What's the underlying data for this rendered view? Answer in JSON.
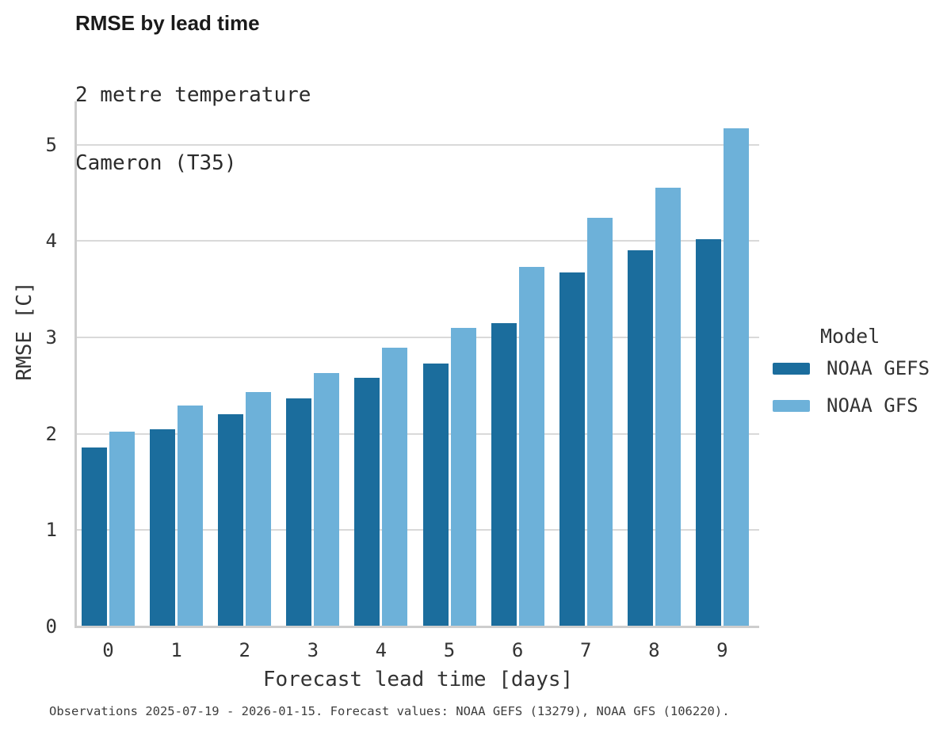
{
  "header": {
    "title": "RMSE by lead time",
    "subtitle_line1": "2 metre temperature",
    "subtitle_line2": "Cameron (T35)"
  },
  "chart_data": {
    "type": "bar",
    "title": "RMSE by lead time",
    "subtitle": "2 metre temperature / Cameron (T35)",
    "categories": [
      "0",
      "1",
      "2",
      "3",
      "4",
      "5",
      "6",
      "7",
      "8",
      "9"
    ],
    "series": [
      {
        "name": "NOAA GEFS",
        "color": "#1b6d9d",
        "values": [
          1.86,
          2.05,
          2.2,
          2.37,
          2.58,
          2.73,
          3.15,
          3.67,
          3.9,
          4.02
        ]
      },
      {
        "name": "NOAA GFS",
        "color": "#6db1d9",
        "values": [
          2.02,
          2.29,
          2.43,
          2.63,
          2.89,
          3.1,
          3.73,
          4.24,
          4.55,
          5.17
        ]
      }
    ],
    "xlabel": "Forecast lead time [days]",
    "ylabel": "RMSE [C]",
    "ylim": [
      0,
      5.45
    ],
    "yticks": [
      0,
      1,
      2,
      3,
      4,
      5
    ],
    "grid": true,
    "legend_position": "right",
    "legend_title": "Model"
  },
  "legend": {
    "title": "Model",
    "items": [
      {
        "label": "NOAA GEFS",
        "color": "#1b6d9d"
      },
      {
        "label": "NOAA GFS",
        "color": "#6db1d9"
      }
    ]
  },
  "caption": "Observations 2025-07-19 - 2026-01-15. Forecast values: NOAA GEFS (13279), NOAA GFS (106220)."
}
